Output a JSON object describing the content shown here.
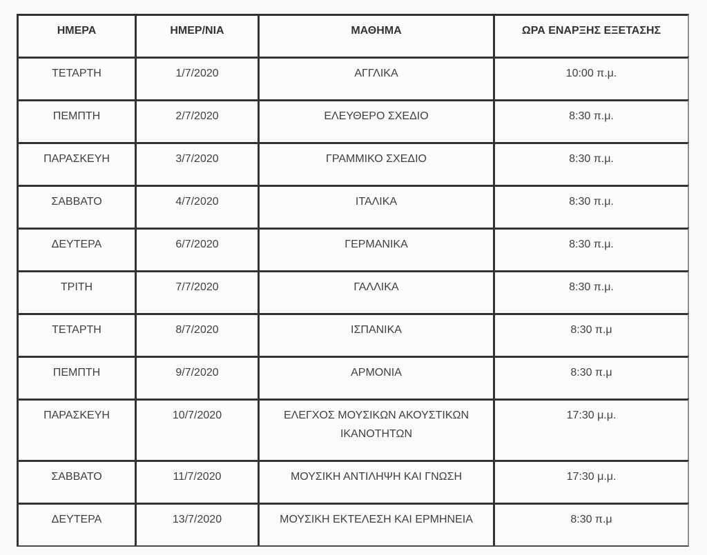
{
  "page": {
    "background": "#fafafa",
    "language": "el"
  },
  "table": {
    "headers": [
      "ΗΜΕΡΑ",
      "ΗΜΕΡ/ΝΙΑ",
      "ΜΑΘΗΜΑ",
      "ΩΡΑ ΕΝΑΡΞΗΣ ΕΞΕΤΑΣΗΣ"
    ],
    "column_keys": [
      "day",
      "date",
      "subject",
      "start-time"
    ],
    "rows": [
      [
        "ΤΕΤΑΡΤΗ",
        "1/7/2020",
        "ΑΓΓΛΙΚΑ",
        "10:00 π.μ."
      ],
      [
        "ΠΕΜΠΤΗ",
        "2/7/2020",
        "ΕΛΕΥΘΕΡΟ ΣΧΕΔΙΟ",
        "8:30 π.μ."
      ],
      [
        "ΠΑΡΑΣΚΕΥΗ",
        "3/7/2020",
        "ΓΡΑΜΜΙΚΟ ΣΧΕΔΙΟ",
        "8:30 π.μ."
      ],
      [
        "ΣΑΒΒΑΤΟ",
        "4/7/2020",
        "ΙΤΑΛΙΚΑ",
        "8:30 π.μ."
      ],
      [
        "ΔΕΥΤΕΡΑ",
        "6/7/2020",
        "ΓΕΡΜΑΝΙΚΑ",
        "8:30 π.μ."
      ],
      [
        "ΤΡΙΤΗ",
        "7/7/2020",
        "ΓΑΛΛΙΚΑ",
        "8:30 π.μ."
      ],
      [
        "ΤΕΤΑΡΤΗ",
        "8/7/2020",
        "ΙΣΠΑΝΙΚΑ",
        "8:30 π.μ"
      ],
      [
        "ΠΕΜΠΤΗ",
        "9/7/2020",
        "ΑΡΜΟΝΙΑ",
        "8:30 π.μ"
      ],
      [
        "ΠΑΡΑΣΚΕΥΗ",
        "10/7/2020",
        "ΕΛΕΓΧΟΣ ΜΟΥΣΙΚΩΝ ΑΚΟΥΣΤΙΚΩΝ ΙΚΑΝΟΤΗΤΩΝ",
        "17:30 μ.μ."
      ],
      [
        "ΣΑΒΒΑΤΟ",
        "11/7/2020",
        "ΜΟΥΣΙΚΗ ΑΝΤΙΛΗΨΗ ΚΑΙ ΓΝΩΣΗ",
        "17:30 μ.μ."
      ],
      [
        "ΔΕΥΤΕΡΑ",
        "13/7/2020",
        "ΜΟΥΣΙΚΗ ΕΚΤΕΛΕΣΗ ΚΑΙ ΕΡΜΗΝΕΙΑ",
        "8:30 π.μ"
      ]
    ],
    "colors": {
      "border": "#333333",
      "outer_right_border": "#8d8d8d",
      "outer_bottom_border": "#4a4a4a",
      "header_text": "#333333",
      "cell_text": "#3f3f3f",
      "cell_background": "#fcfcfc"
    }
  }
}
